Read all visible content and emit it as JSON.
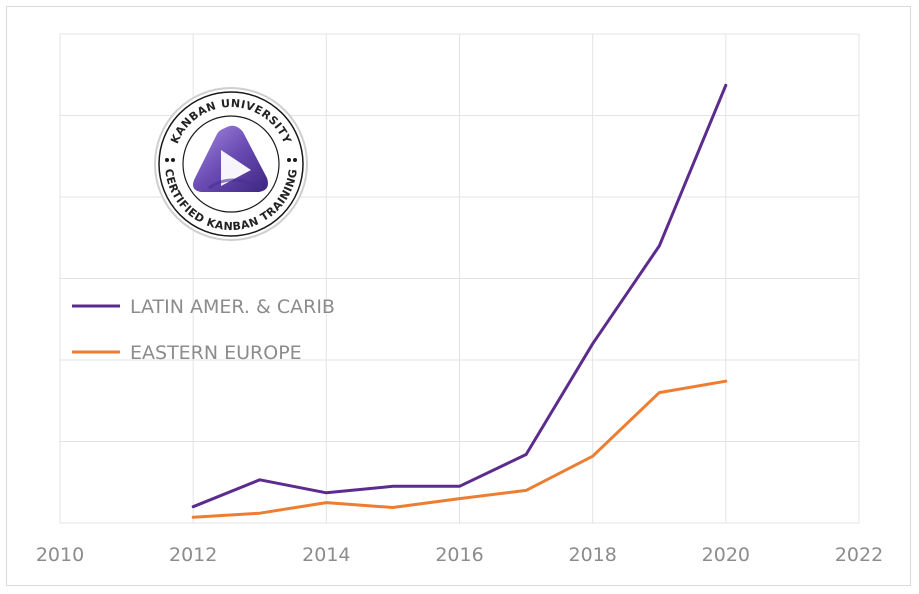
{
  "chart_data": {
    "type": "line",
    "title": "",
    "xlabel": "",
    "ylabel": "",
    "xlim": [
      2010,
      2022
    ],
    "ylim": [
      0,
      6
    ],
    "x_ticks": [
      "2010",
      "2012",
      "2014",
      "2016",
      "2018",
      "2020",
      "2022"
    ],
    "grid": true,
    "legend_placement": "left",
    "series": [
      {
        "name": "LATIN AMER. & CARIB",
        "color": "#5b2c8e",
        "x": [
          2012,
          2013,
          2014,
          2015,
          2016,
          2017,
          2018,
          2019,
          2020
        ],
        "values": [
          0.2,
          0.53,
          0.37,
          0.45,
          0.45,
          0.84,
          2.2,
          3.4,
          5.37
        ]
      },
      {
        "name": "EASTERN EUROPE",
        "color": "#ed7d31",
        "x": [
          2012,
          2013,
          2014,
          2015,
          2016,
          2017,
          2018,
          2019,
          2020
        ],
        "values": [
          0.07,
          0.12,
          0.25,
          0.19,
          0.3,
          0.4,
          0.82,
          1.6,
          1.74
        ]
      }
    ]
  },
  "logo": {
    "text_top": "KANBAN UNIVERSITY",
    "text_bottom": "CERTIFIED KANBAN TRAINING",
    "color": "#6a4bb3"
  }
}
